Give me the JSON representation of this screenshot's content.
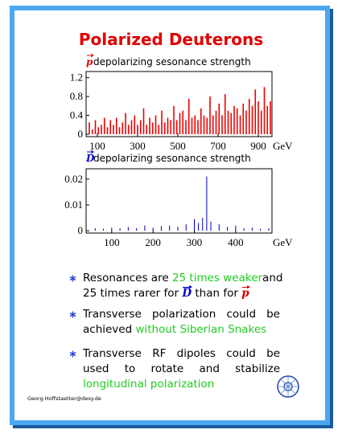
{
  "title": "Polarized Deuterons",
  "chart_data": [
    {
      "type": "stem",
      "symbol": "p",
      "symbol_color": "#e00000",
      "subtitle": " depolarizing sesonance strength",
      "xlabel": "GeV",
      "color": "#ee0000",
      "x": [
        60,
        75,
        90,
        105,
        120,
        135,
        150,
        165,
        180,
        195,
        210,
        225,
        240,
        255,
        270,
        285,
        300,
        315,
        330,
        345,
        360,
        375,
        390,
        405,
        420,
        435,
        450,
        465,
        480,
        495,
        510,
        525,
        540,
        555,
        570,
        585,
        600,
        615,
        630,
        645,
        660,
        675,
        690,
        705,
        720,
        735,
        750,
        765,
        780,
        795,
        810,
        825,
        840,
        855,
        870,
        885,
        900,
        915,
        930,
        945,
        960
      ],
      "values": [
        0.25,
        0.1,
        0.3,
        0.15,
        0.2,
        0.35,
        0.15,
        0.3,
        0.2,
        0.35,
        0.15,
        0.25,
        0.45,
        0.2,
        0.3,
        0.4,
        0.2,
        0.3,
        0.55,
        0.2,
        0.35,
        0.25,
        0.4,
        0.2,
        0.5,
        0.25,
        0.35,
        0.3,
        0.6,
        0.3,
        0.45,
        0.5,
        0.3,
        0.75,
        0.35,
        0.4,
        0.3,
        0.55,
        0.4,
        0.35,
        0.8,
        0.4,
        0.5,
        0.65,
        0.4,
        0.85,
        0.5,
        0.45,
        0.6,
        0.55,
        0.4,
        0.65,
        0.5,
        0.75,
        0.6,
        0.95,
        0.7,
        0.5,
        1.0,
        0.6,
        0.7
      ],
      "xlim": [
        44,
        968
      ],
      "ylim": [
        -0.05,
        1.33
      ],
      "xticks": [
        100,
        300,
        500,
        700,
        900
      ],
      "yticks": [
        0,
        0.4,
        0.8,
        1.2
      ]
    },
    {
      "type": "stem",
      "symbol": "D",
      "symbol_color": "#0000cc",
      "subtitle": " depolarizing sesonance strength",
      "xlabel": "GeV",
      "color": "#0000bb",
      "x": [
        60,
        80,
        100,
        120,
        140,
        160,
        180,
        200,
        220,
        240,
        260,
        280,
        300,
        310,
        320,
        330,
        340,
        360,
        380,
        400,
        420,
        440,
        460,
        480
      ],
      "values": [
        0.001,
        0.0008,
        0.0012,
        0.001,
        0.0015,
        0.001,
        0.002,
        0.0012,
        0.0018,
        0.002,
        0.0015,
        0.0025,
        0.0045,
        0.003,
        0.005,
        0.021,
        0.0035,
        0.0025,
        0.0015,
        0.002,
        0.001,
        0.0012,
        0.0008,
        0.001
      ],
      "xlim": [
        38,
        488
      ],
      "ylim": [
        -0.0009,
        0.024
      ],
      "xticks": [
        100,
        200,
        300,
        400
      ],
      "yticks": [
        0,
        0.01,
        0.02
      ]
    }
  ],
  "bullets": [
    {
      "lines": [
        [
          {
            "text": "Resonances are "
          },
          {
            "text": "25 times weaker",
            "color": "#22cc22"
          },
          {
            "text": "and"
          }
        ],
        [
          {
            "text": "25 times rarer for "
          },
          {
            "text": "D",
            "color": "#0000cc",
            "vector": true
          },
          {
            "text": " than for "
          },
          {
            "text": "p",
            "color": "#e00000",
            "vector": true
          }
        ]
      ]
    },
    {
      "lines": [
        [
          {
            "text": "Transverse polarization could be"
          }
        ],
        [
          {
            "text": "achieved "
          },
          {
            "text": "without Siberian Snakes",
            "color": "#22cc22"
          }
        ]
      ]
    },
    {
      "lines": [
        [
          {
            "text": "Transverse RF dipoles could be"
          }
        ],
        [
          {
            "text": "used to rotate and stabilize"
          }
        ],
        [
          {
            "text": "longitudinal polarization",
            "color": "#22cc22"
          }
        ]
      ]
    }
  ],
  "footer": "Georg.Hoffstaetter@desy.de"
}
